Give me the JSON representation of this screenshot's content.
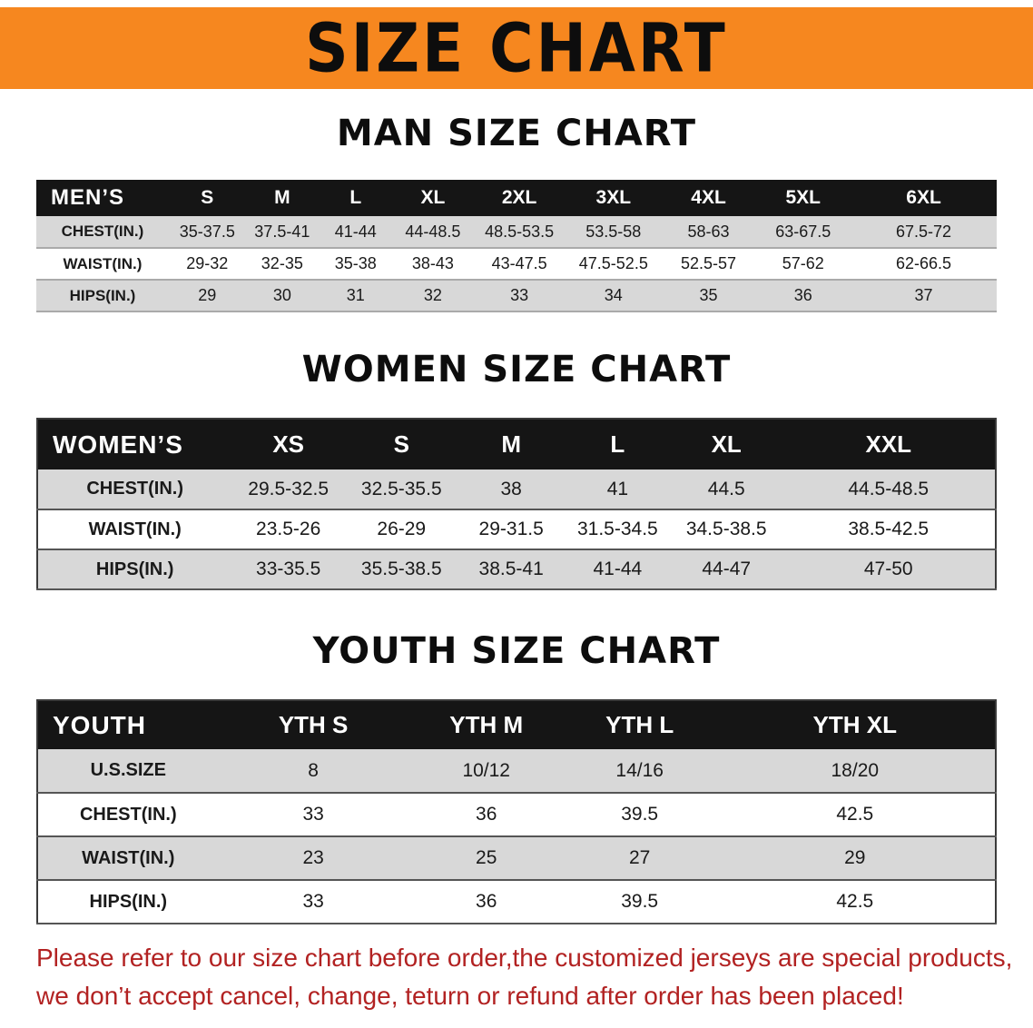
{
  "banner": {
    "title": "SIZE CHART"
  },
  "men": {
    "heading": "MAN SIZE CHART",
    "header": [
      "MEN’S",
      "S",
      "M",
      "L",
      "XL",
      "2XL",
      "3XL",
      "4XL",
      "5XL",
      "6XL"
    ],
    "rows": [
      {
        "label": "CHEST(IN.)",
        "values": [
          "35-37.5",
          "37.5-41",
          "41-44",
          "44-48.5",
          "48.5-53.5",
          "53.5-58",
          "58-63",
          "63-67.5",
          "67.5-72"
        ]
      },
      {
        "label": "WAIST(IN.)",
        "values": [
          "29-32",
          "32-35",
          "35-38",
          "38-43",
          "43-47.5",
          "47.5-52.5",
          "52.5-57",
          "57-62",
          "62-66.5"
        ]
      },
      {
        "label": "HIPS(IN.)",
        "values": [
          "29",
          "30",
          "31",
          "32",
          "33",
          "34",
          "35",
          "36",
          "37"
        ]
      }
    ]
  },
  "women": {
    "heading": "WOMEN SIZE CHART",
    "header": [
      "WOMEN’S",
      "XS",
      "S",
      "M",
      "L",
      "XL",
      "XXL"
    ],
    "rows": [
      {
        "label": "CHEST(IN.)",
        "values": [
          "29.5-32.5",
          "32.5-35.5",
          "38",
          "41",
          "44.5",
          "44.5-48.5"
        ]
      },
      {
        "label": "WAIST(IN.)",
        "values": [
          "23.5-26",
          "26-29",
          "29-31.5",
          "31.5-34.5",
          "34.5-38.5",
          "38.5-42.5"
        ]
      },
      {
        "label": "HIPS(IN.)",
        "values": [
          "33-35.5",
          "35.5-38.5",
          "38.5-41",
          "41-44",
          "44-47",
          "47-50"
        ]
      }
    ]
  },
  "youth": {
    "heading": "YOUTH SIZE CHART",
    "header": [
      "YOUTH",
      "YTH S",
      "YTH M",
      "YTH L",
      "YTH XL"
    ],
    "rows": [
      {
        "label": "U.S.SIZE",
        "values": [
          "8",
          "10/12",
          "14/16",
          "18/20"
        ]
      },
      {
        "label": "CHEST(IN.)",
        "values": [
          "33",
          "36",
          "39.5",
          "42.5"
        ]
      },
      {
        "label": "WAIST(IN.)",
        "values": [
          "23",
          "25",
          "27",
          "29"
        ]
      },
      {
        "label": "HIPS(IN.)",
        "values": [
          "33",
          "36",
          "39.5",
          "42.5"
        ]
      }
    ]
  },
  "footer": {
    "line1": "Please refer to our size chart before order,the customized jerseys are special products,",
    "line2": "we don’t accept cancel, change, teturn or refund after order has been placed!"
  },
  "colors": {
    "banner_bg": "#f6871f",
    "header_row_bg": "#151515",
    "stripe_bg": "#d8d8d8",
    "footer_text": "#b22222"
  }
}
